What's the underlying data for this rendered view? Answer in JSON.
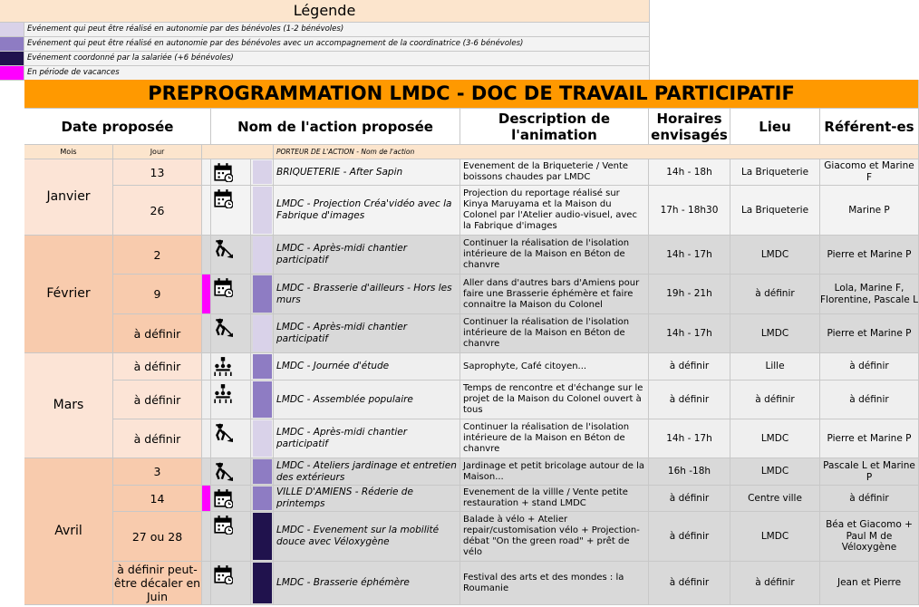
{
  "legend": {
    "title": "Légende",
    "items": [
      {
        "text": "Evénement qui peut être réalisé en autonomie par des bénévoles (1-2 bénévoles)",
        "color": "#d9d2e9"
      },
      {
        "text": "Evénement qui peut être réalisé en autonomie par des bénévoles avec un accompagnement de la coordinatrice (3-6 bénévoles)",
        "color": "#8e7cc3"
      },
      {
        "text": "Evénement coordonné par la salariée (+6 bénévoles)",
        "color": "#20124d"
      },
      {
        "text": "En période de vacances",
        "color": "#ff00ff"
      }
    ]
  },
  "title": "PREPROGRAMMATION LMDC - DOC DE TRAVAIL PARTICIPATIF",
  "headers": {
    "date": "Date proposée",
    "nom": "Nom de l'action proposée",
    "description": "Description de l'animation",
    "horaires": "Horaires envisagés",
    "lieu": "Lieu",
    "referents": "Référent-es"
  },
  "subheaders": {
    "mois": "Mois",
    "jour": "Jour",
    "porteur": "PORTEUR  DE L'ACTION - Nom de l'action"
  },
  "months": [
    {
      "name": "Janvier",
      "rows": [
        {
          "jour": "13",
          "action": "BRIQUETERIE - After Sapin",
          "description": "Evenement de la Briqueterie / Vente boissons chaudes par LMDC",
          "horaires": "14h - 18h",
          "lieu": "La Briqueterie",
          "referents": "Giacomo et Marine F",
          "color": "#d9d2e9"
        },
        {
          "jour": "26",
          "action": "LMDC - Projection Créa'vidéo avec la Fabrique d'images",
          "description": "Projection du reportage réalisé sur Kinya Maruyama et la Maison du Colonel par l'Atelier audio-visuel, avec la Fabrique d'images",
          "horaires": "17h - 18h30",
          "lieu": "La Briqueterie",
          "referents": "Marine P",
          "color": "#d9d2e9"
        }
      ]
    },
    {
      "name": "Février",
      "rows": [
        {
          "jour": "2",
          "action": "LMDC - Après-midi chantier participatif",
          "description": "Continuer la réalisation de l'isolation intérieure de la Maison en Béton de chanvre",
          "horaires": "14h - 17h",
          "lieu": "LMDC",
          "referents": "Pierre et Marine P",
          "color": "#d9d2e9"
        },
        {
          "jour": "9",
          "action": "LMDC - Brasserie d'ailleurs - Hors les murs",
          "description": "Aller dans d'autres bars d'Amiens pour faire une Brasserie éphémère et faire connaitre la Maison du Colonel",
          "horaires": "19h - 21h",
          "lieu": "à définir",
          "referents": "Lola, Marine F, Florentine, Pascale L",
          "color": "#8e7cc3",
          "vacances_color": "#ff00ff"
        },
        {
          "jour": "à définir",
          "action": "LMDC - Après-midi chantier participatif",
          "description": "Continuer la réalisation de l'isolation intérieure de la Maison en Béton de chanvre",
          "horaires": "14h - 17h",
          "lieu": "LMDC",
          "referents": "Pierre et Marine P",
          "color": "#d9d2e9"
        }
      ]
    },
    {
      "name": "Mars",
      "rows": [
        {
          "jour": "à définir",
          "action": "LMDC - Journée d'étude",
          "description": "Saprophyte, Café citoyen...",
          "horaires": "à définir",
          "lieu": "Lille",
          "referents": "à définir",
          "color": "#8e7cc3"
        },
        {
          "jour": "à définir",
          "action": "LMDC - Assemblée populaire",
          "description": "Temps de rencontre et d'échange sur le projet de la Maison du Colonel ouvert à tous",
          "horaires": "à définir",
          "lieu": "à définir",
          "referents": "à définir",
          "color": "#8e7cc3"
        },
        {
          "jour": "à définir",
          "action": "LMDC - Après-midi chantier participatif",
          "description": "Continuer la réalisation de l'isolation intérieure de la Maison en Béton de chanvre",
          "horaires": "14h - 17h",
          "lieu": "LMDC",
          "referents": "Pierre et Marine P",
          "color": "#d9d2e9"
        }
      ]
    },
    {
      "name": "Avril",
      "rows": [
        {
          "jour": "3",
          "action": "LMDC - Ateliers jardinage et entretien des extérieurs",
          "description": "Jardinage et petit bricolage autour de la Maison...",
          "horaires": "16h -18h",
          "lieu": "LMDC",
          "referents": "Pascale L et Marine P",
          "color": "#8e7cc3"
        },
        {
          "jour": "14",
          "action": "VILLE D'AMIENS - Réderie de printemps",
          "description": "Evenement de la villle / Vente petite restauration + stand LMDC",
          "horaires": "à définir",
          "lieu": "Centre ville",
          "referents": "à définir",
          "color": "#8e7cc3",
          "vacances_color": "#ff00ff"
        },
        {
          "jour": "27 ou 28",
          "action": "LMDC - Evenement sur la mobilité douce avec Véloxygène",
          "description": "Balade à vélo + Atelier repair/customisation vélo + Projection-débat \"On the green road\" + prêt de vélo",
          "horaires": "à définir",
          "lieu": "LMDC",
          "referents": "Béa et Giacomo + Paul M de Véloxygène",
          "color": "#20124d"
        },
        {
          "jour": "à définir peut-être décaler en Juin",
          "action": "LMDC - Brasserie éphémère",
          "description": "Festival des arts et des mondes : la Roumanie",
          "horaires": "à définir",
          "lieu": "à définir",
          "referents": "Jean et Pierre",
          "color": "#20124d"
        }
      ]
    }
  ]
}
